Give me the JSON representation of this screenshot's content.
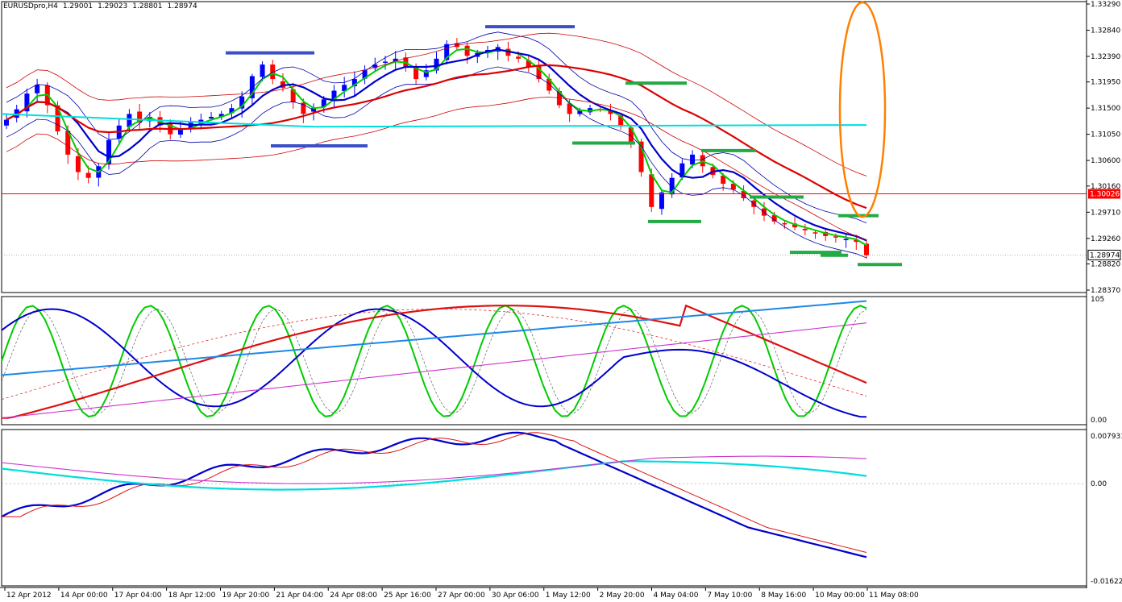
{
  "header": {
    "symbol": "EURUSDpro,H4",
    "open": "1.29001",
    "high": "1.29023",
    "low": "1.28801",
    "close": "1.28974"
  },
  "colors": {
    "bull": "#0000ff",
    "bear": "#ff0000",
    "green_line": "#00cc00",
    "bands": "#0000aa",
    "envelope": "#cc0000",
    "cyan": "#00dddd",
    "orange_marker": "#ff8000",
    "zone_blue": "#3a4fc8",
    "zone_green": "#22aa44"
  },
  "chart_data": [
    {
      "type": "candlestick",
      "panel": "price",
      "symbol": "EURUSDpro,H4",
      "price_axis_ticks": [
        "1.33290",
        "1.32840",
        "1.32390",
        "1.31950",
        "1.31500",
        "1.31050",
        "1.30600",
        "1.30160",
        "1.29710",
        "1.29260",
        "1.28820",
        "1.28370"
      ],
      "ylim": [
        1.2837,
        1.3329
      ],
      "time_axis_labels": [
        "12 Apr 2012",
        "14 Apr 00:00",
        "17 Apr 04:00",
        "18 Apr 12:00",
        "19 Apr 20:00",
        "21 Apr 04:00",
        "24 Apr 08:00",
        "25 Apr 16:00",
        "27 Apr 00:00",
        "30 Apr 06:00",
        "1 May 12:00",
        "2 May 20:00",
        "4 May 04:00",
        "7 May 10:00",
        "8 May 16:00",
        "10 May 00:00",
        "11 May 08:00"
      ],
      "price_labels": [
        {
          "value": "1.30026",
          "level": 1.30026,
          "style": "red-box"
        },
        {
          "value": "1.28974",
          "level": 1.28974,
          "style": "white-box"
        }
      ],
      "closes": [
        1.313,
        1.3148,
        1.3175,
        1.319,
        1.3155,
        1.311,
        1.307,
        1.304,
        1.303,
        1.305,
        1.3095,
        1.312,
        1.314,
        1.3125,
        1.3135,
        1.312,
        1.3105,
        1.3115,
        1.3125,
        1.313,
        1.3135,
        1.314,
        1.315,
        1.317,
        1.3205,
        1.3225,
        1.32,
        1.3185,
        1.316,
        1.314,
        1.315,
        1.3165,
        1.318,
        1.319,
        1.32,
        1.3215,
        1.3225,
        1.323,
        1.3235,
        1.322,
        1.32,
        1.3215,
        1.3235,
        1.326,
        1.3255,
        1.324,
        1.3245,
        1.325,
        1.3255,
        1.324,
        1.3235,
        1.322,
        1.32,
        1.318,
        1.3155,
        1.314,
        1.3145,
        1.315,
        1.3148,
        1.314,
        1.312,
        1.309,
        1.304,
        1.298,
        1.3005,
        1.303,
        1.3055,
        1.307,
        1.305,
        1.3035,
        1.302,
        1.301,
        1.2995,
        1.298,
        1.2965,
        1.2955,
        1.295,
        1.2945,
        1.294,
        1.2935,
        1.293,
        1.2928,
        1.2925,
        1.292,
        1.2897
      ],
      "series": [
        {
          "name": "",
          "color": "#00cc00",
          "kind": "moving-average"
        },
        {
          "name": "",
          "color": "#0000aa",
          "kind": "bands-thick-center"
        },
        {
          "name": "",
          "color": "#cc0000",
          "kind": "envelope"
        },
        {
          "name": "",
          "color": "#00dddd",
          "kind": "horizontal-ma"
        }
      ],
      "zones": [
        {
          "color": "zone_blue",
          "level": 1.3245
        },
        {
          "color": "zone_blue",
          "level": 1.3085
        },
        {
          "color": "zone_blue",
          "level": 1.329
        },
        {
          "color": "zone_green",
          "level": 1.3193
        },
        {
          "color": "zone_green",
          "level": 1.309
        },
        {
          "color": "zone_green",
          "level": 1.3077
        },
        {
          "color": "zone_green",
          "level": 1.2955
        },
        {
          "color": "zone_green",
          "level": 1.2997
        },
        {
          "color": "zone_green",
          "level": 1.2902
        },
        {
          "color": "zone_green",
          "level": 1.2897
        },
        {
          "color": "zone_green",
          "level": 1.2965
        },
        {
          "color": "zone_green",
          "level": 1.2881
        }
      ],
      "annotation": {
        "kind": "orange-ellipse",
        "color": "orange_marker"
      }
    },
    {
      "type": "line",
      "panel": "oscillator",
      "ylim": [
        0,
        105
      ],
      "ticks": [
        "105",
        "0.00"
      ],
      "series": [
        {
          "name": "",
          "color": "#00cc00"
        },
        {
          "name": "",
          "color": "#0000cc"
        },
        {
          "name": "",
          "color": "#dd1111"
        },
        {
          "name": "",
          "color": "#1e88e5"
        },
        {
          "name": "",
          "color": "#cc33cc"
        }
      ]
    },
    {
      "type": "line",
      "panel": "macd",
      "ylim": [
        -0.01622,
        0.007931
      ],
      "ticks": [
        "0.007931",
        "0.00",
        "-0.01622"
      ],
      "series": [
        {
          "name": "",
          "color": "#0000cc"
        },
        {
          "name": "",
          "color": "#dd1111"
        },
        {
          "name": "",
          "color": "#00dddd"
        },
        {
          "name": "",
          "color": "#cc33cc"
        }
      ]
    }
  ]
}
